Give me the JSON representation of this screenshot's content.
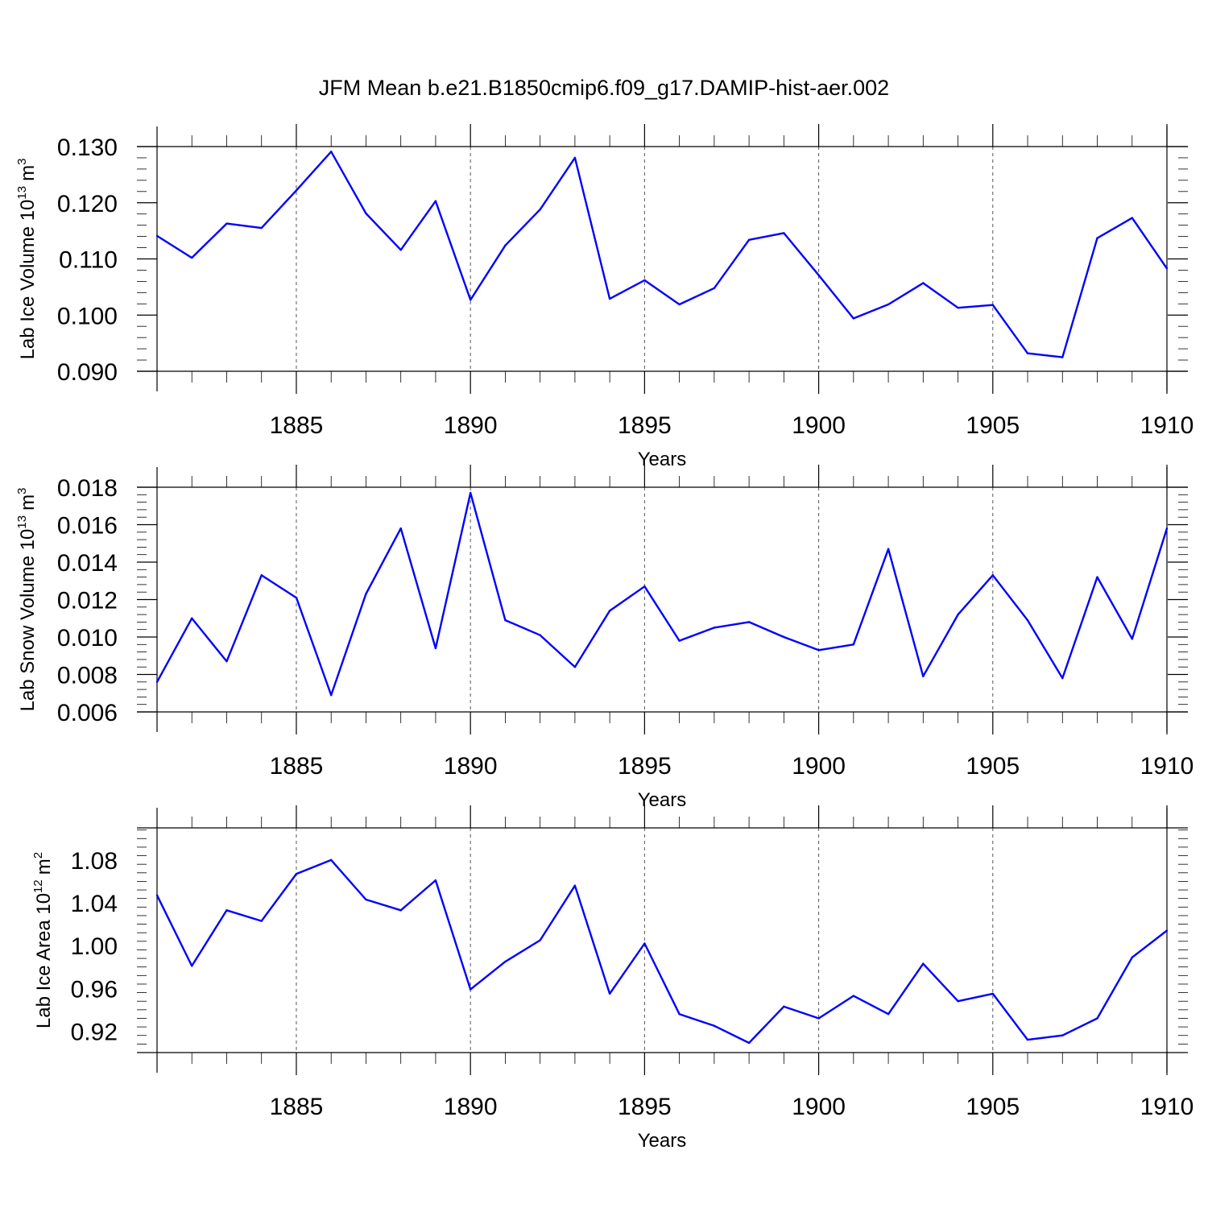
{
  "title": "JFM Mean b.e21.B1850cmip6.f09_g17.DAMIP-hist-aer.002",
  "colors": {
    "line": "#0000ff",
    "axis": "#000000",
    "grid": "#555555"
  },
  "chart_data": [
    {
      "type": "line",
      "ylabel_main": "Lab Ice Volume 10",
      "ylabel_exp": "13",
      "ylabel_unit": "m",
      "ylabel_unit_exp": "3",
      "xlabel": "Years",
      "xlim": [
        1881,
        1910
      ],
      "ylim": [
        0.09,
        0.13
      ],
      "yticks": [
        "0.090",
        "0.100",
        "0.110",
        "0.120",
        "0.130"
      ],
      "yticks_values": [
        0.09,
        0.1,
        0.11,
        0.12,
        0.13
      ],
      "xticks": [
        "1885",
        "1890",
        "1895",
        "1900",
        "1905",
        "1910"
      ],
      "xticks_values": [
        1885,
        1890,
        1895,
        1900,
        1905,
        1910
      ],
      "grid": "vertical dashed at major x ticks",
      "x": [
        1881,
        1882,
        1883,
        1884,
        1885,
        1886,
        1887,
        1888,
        1889,
        1890,
        1891,
        1892,
        1893,
        1894,
        1895,
        1896,
        1897,
        1898,
        1899,
        1900,
        1901,
        1902,
        1903,
        1904,
        1905,
        1906,
        1907,
        1908,
        1909,
        1910
      ],
      "values": [
        0.1141,
        0.1102,
        0.1163,
        0.1155,
        0.1222,
        0.1291,
        0.1181,
        0.1116,
        0.1203,
        0.1027,
        0.1124,
        0.1188,
        0.128,
        0.1029,
        0.1062,
        0.1019,
        0.1048,
        0.1134,
        0.1146,
        0.1071,
        0.0994,
        0.1019,
        0.1057,
        0.1013,
        0.1018,
        0.0932,
        0.0925,
        0.1137,
        0.1173,
        0.1083
      ]
    },
    {
      "type": "line",
      "ylabel_main": "Lab Snow Volume 10",
      "ylabel_exp": "13",
      "ylabel_unit": "m",
      "ylabel_unit_exp": "3",
      "xlabel": "Years",
      "xlim": [
        1881,
        1910
      ],
      "ylim": [
        0.006,
        0.018
      ],
      "yticks": [
        "0.006",
        "0.008",
        "0.010",
        "0.012",
        "0.014",
        "0.016",
        "0.018"
      ],
      "yticks_values": [
        0.006,
        0.008,
        0.01,
        0.012,
        0.014,
        0.016,
        0.018
      ],
      "xticks": [
        "1885",
        "1890",
        "1895",
        "1900",
        "1905",
        "1910"
      ],
      "xticks_values": [
        1885,
        1890,
        1895,
        1900,
        1905,
        1910
      ],
      "grid": "vertical dashed at major x ticks",
      "x": [
        1881,
        1882,
        1883,
        1884,
        1885,
        1886,
        1887,
        1888,
        1889,
        1890,
        1891,
        1892,
        1893,
        1894,
        1895,
        1896,
        1897,
        1898,
        1899,
        1900,
        1901,
        1902,
        1903,
        1904,
        1905,
        1906,
        1907,
        1908,
        1909,
        1910
      ],
      "values": [
        0.0076,
        0.011,
        0.0087,
        0.0133,
        0.0121,
        0.0069,
        0.0123,
        0.0158,
        0.0094,
        0.0177,
        0.0109,
        0.0101,
        0.0084,
        0.0114,
        0.0127,
        0.0098,
        0.0105,
        0.0108,
        0.01,
        0.0093,
        0.0096,
        0.0147,
        0.0079,
        0.0112,
        0.0133,
        0.0109,
        0.0078,
        0.0132,
        0.0099,
        0.0158
      ]
    },
    {
      "type": "line",
      "ylabel_main": "Lab Ice Area 10",
      "ylabel_exp": "12",
      "ylabel_unit": "m",
      "ylabel_unit_exp": "2",
      "xlabel": "Years",
      "xlim": [
        1881,
        1910
      ],
      "ylim": [
        0.9,
        1.11
      ],
      "yticks": [
        "0.92",
        "0.96",
        "1.00",
        "1.04",
        "1.08"
      ],
      "yticks_values": [
        0.92,
        0.96,
        1.0,
        1.04,
        1.08
      ],
      "xticks": [
        "1885",
        "1890",
        "1895",
        "1900",
        "1905",
        "1910"
      ],
      "xticks_values": [
        1885,
        1890,
        1895,
        1900,
        1905,
        1910
      ],
      "grid": "vertical dashed at major x ticks",
      "x": [
        1881,
        1882,
        1883,
        1884,
        1885,
        1886,
        1887,
        1888,
        1889,
        1890,
        1891,
        1892,
        1893,
        1894,
        1895,
        1896,
        1897,
        1898,
        1899,
        1900,
        1901,
        1902,
        1903,
        1904,
        1905,
        1906,
        1907,
        1908,
        1909,
        1910
      ],
      "values": [
        1.047,
        0.981,
        1.033,
        1.023,
        1.067,
        1.08,
        1.043,
        1.033,
        1.061,
        0.959,
        0.985,
        1.005,
        1.056,
        0.955,
        1.002,
        0.936,
        0.925,
        0.909,
        0.943,
        0.932,
        0.953,
        0.936,
        0.983,
        0.948,
        0.955,
        0.912,
        0.916,
        0.932,
        0.989,
        1.014
      ]
    }
  ]
}
